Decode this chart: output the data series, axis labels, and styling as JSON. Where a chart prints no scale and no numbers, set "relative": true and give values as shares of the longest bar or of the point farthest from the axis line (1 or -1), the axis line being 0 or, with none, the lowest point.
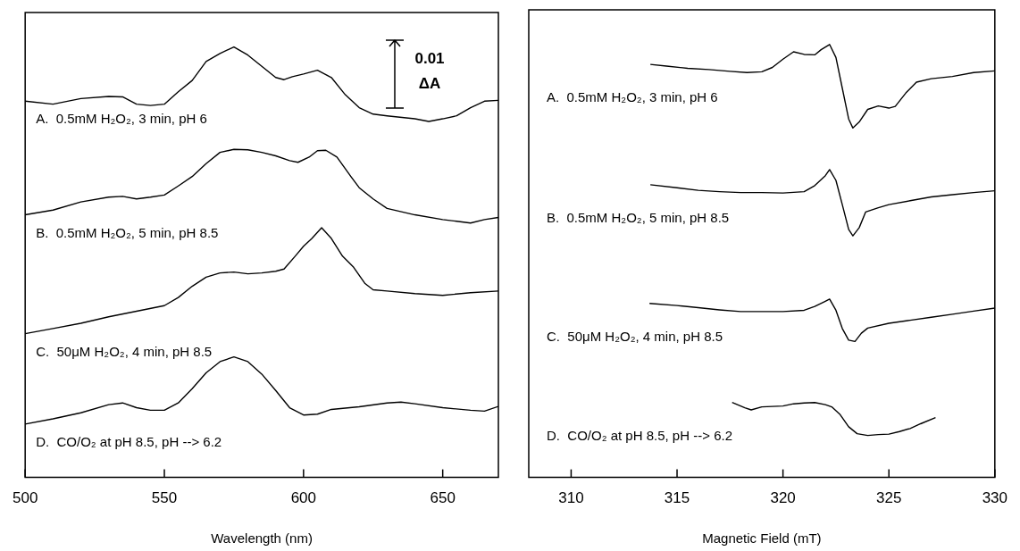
{
  "chart_data": [
    {
      "type": "line",
      "xlabel": "Wavelength (nm)",
      "xlim": [
        500,
        670
      ],
      "xticks": [
        500,
        550,
        600,
        650
      ],
      "relative": true,
      "annotations": [
        "0.01 ΔA"
      ],
      "series": [
        {
          "name": "A.  0.5mM H₂O₂, 3 min, pH 6",
          "color": "#000000",
          "x": [
            500,
            510,
            520,
            530,
            535,
            540,
            545,
            550,
            555,
            560,
            565,
            570,
            575,
            580,
            585,
            590,
            593,
            596,
            600,
            605,
            610,
            615,
            620,
            625,
            630,
            640,
            645,
            650,
            655,
            660,
            665,
            670
          ],
          "values": [
            0.874,
            0.867,
            0.88,
            0.885,
            0.884,
            0.867,
            0.864,
            0.867,
            0.896,
            0.922,
            0.966,
            0.985,
            1.0,
            0.981,
            0.955,
            0.929,
            0.924,
            0.931,
            0.937,
            0.946,
            0.929,
            0.889,
            0.859,
            0.844,
            0.84,
            0.833,
            0.827,
            0.833,
            0.84,
            0.859,
            0.874,
            0.876
          ]
        },
        {
          "name": "B.  0.5mM H₂O₂, 5 min, pH 8.5",
          "color": "#000000",
          "x": [
            500,
            510,
            520,
            530,
            535,
            540,
            545,
            550,
            555,
            560,
            565,
            570,
            575,
            580,
            585,
            590,
            595,
            598,
            602,
            605,
            608,
            612,
            617,
            620,
            625,
            630,
            640,
            650,
            655,
            660,
            665,
            670
          ],
          "values": [
            0.61,
            0.621,
            0.64,
            0.651,
            0.653,
            0.647,
            0.651,
            0.656,
            0.677,
            0.699,
            0.729,
            0.755,
            0.762,
            0.761,
            0.755,
            0.747,
            0.736,
            0.732,
            0.744,
            0.759,
            0.76,
            0.744,
            0.699,
            0.673,
            0.647,
            0.625,
            0.61,
            0.599,
            0.595,
            0.591,
            0.599,
            0.604
          ]
        },
        {
          "name": "C.  50μM H₂O₂, 4 min, pH 8.5",
          "color": "#000000",
          "x": [
            500,
            510,
            520,
            530,
            540,
            550,
            555,
            560,
            565,
            570,
            575,
            580,
            585,
            590,
            593,
            597,
            600,
            603,
            606.5,
            610,
            614,
            618,
            622,
            625,
            630,
            640,
            650,
            660,
            670
          ],
          "values": [
            0.334,
            0.346,
            0.358,
            0.373,
            0.386,
            0.399,
            0.418,
            0.444,
            0.465,
            0.475,
            0.477,
            0.473,
            0.475,
            0.479,
            0.484,
            0.514,
            0.537,
            0.555,
            0.58,
            0.555,
            0.514,
            0.488,
            0.451,
            0.436,
            0.433,
            0.427,
            0.423,
            0.429,
            0.433
          ]
        },
        {
          "name": "D.  CO/O₂ at pH 8.5, pH --> 6.2",
          "color": "#000000",
          "x": [
            500,
            510,
            520,
            530,
            535,
            540,
            545,
            550,
            555,
            560,
            565,
            570,
            575,
            580,
            585,
            590,
            595,
            600,
            605,
            610,
            620,
            630,
            635,
            640,
            650,
            660,
            665,
            670
          ],
          "values": [
            0.124,
            0.136,
            0.15,
            0.169,
            0.173,
            0.162,
            0.156,
            0.156,
            0.173,
            0.206,
            0.243,
            0.269,
            0.28,
            0.269,
            0.24,
            0.202,
            0.162,
            0.145,
            0.147,
            0.158,
            0.164,
            0.173,
            0.175,
            0.171,
            0.162,
            0.156,
            0.154,
            0.165
          ]
        }
      ]
    },
    {
      "type": "line",
      "xlabel": "Magnetic Field (mT)",
      "xlim": [
        308,
        330
      ],
      "xticks": [
        310,
        315,
        320,
        325,
        330
      ],
      "relative": true,
      "series": [
        {
          "name": "A.  0.5mM H₂O₂, 3 min, pH 6",
          "color": "#000000",
          "x": [
            313.74,
            314.5,
            315.5,
            316.5,
            317.5,
            318.3,
            319,
            319.5,
            320,
            320.5,
            321,
            321.5,
            321.8,
            322.2,
            322.5,
            322.8,
            323.1,
            323.3,
            323.6,
            324,
            324.5,
            325,
            325.3,
            325.8,
            326.3,
            327,
            328,
            329,
            330
          ],
          "values": [
            0.954,
            0.95,
            0.945,
            0.942,
            0.938,
            0.935,
            0.937,
            0.947,
            0.966,
            0.983,
            0.977,
            0.976,
            0.988,
            1.0,
            0.97,
            0.899,
            0.828,
            0.807,
            0.821,
            0.85,
            0.858,
            0.853,
            0.857,
            0.888,
            0.913,
            0.921,
            0.926,
            0.935,
            0.939
          ]
        },
        {
          "name": "B.  0.5mM H₂O₂, 5 min, pH 8.5",
          "color": "#000000",
          "x": [
            313.74,
            315,
            316,
            317,
            318,
            319,
            320,
            321,
            321.5,
            322,
            322.2,
            322.5,
            322.8,
            323.1,
            323.3,
            323.6,
            323.9,
            324.5,
            325,
            326,
            327,
            328,
            329,
            330
          ],
          "values": [
            0.676,
            0.669,
            0.663,
            0.66,
            0.658,
            0.658,
            0.657,
            0.66,
            0.674,
            0.697,
            0.711,
            0.686,
            0.63,
            0.573,
            0.558,
            0.577,
            0.613,
            0.623,
            0.63,
            0.639,
            0.648,
            0.653,
            0.658,
            0.662
          ]
        },
        {
          "name": "C.  50μM H₂O₂, 4 min, pH 8.5",
          "color": "#000000",
          "x": [
            313.7,
            315,
            316,
            317,
            318,
            319,
            320,
            321,
            321.5,
            322,
            322.2,
            322.5,
            322.8,
            323.1,
            323.4,
            323.7,
            324,
            325,
            326,
            327,
            328,
            329,
            330
          ],
          "values": [
            0.402,
            0.397,
            0.392,
            0.387,
            0.383,
            0.383,
            0.383,
            0.386,
            0.395,
            0.407,
            0.412,
            0.386,
            0.344,
            0.317,
            0.314,
            0.333,
            0.345,
            0.356,
            0.363,
            0.37,
            0.377,
            0.384,
            0.391
          ]
        },
        {
          "name": "D.  CO/O₂ at pH 8.5, pH --> 6.2",
          "color": "#000000",
          "x": [
            317.6,
            318.2,
            318.5,
            319,
            320,
            320.5,
            321,
            321.5,
            322,
            322.3,
            322.7,
            323.1,
            323.5,
            324,
            324.5,
            325,
            325.5,
            326,
            326.5,
            327.2
          ],
          "values": [
            0.173,
            0.161,
            0.156,
            0.163,
            0.165,
            0.17,
            0.172,
            0.173,
            0.168,
            0.163,
            0.145,
            0.117,
            0.101,
            0.097,
            0.099,
            0.1,
            0.106,
            0.113,
            0.124,
            0.138
          ]
        }
      ]
    }
  ]
}
